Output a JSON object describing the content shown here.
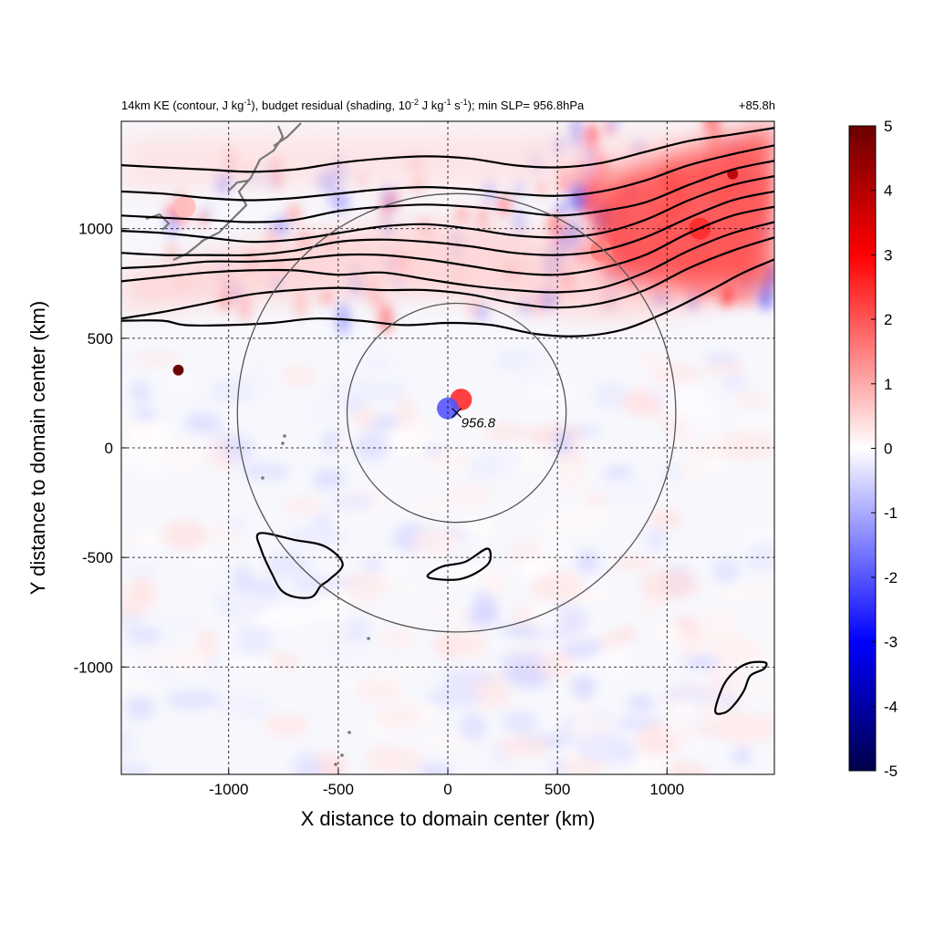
{
  "chart_data": {
    "type": "heatmap",
    "title_parts": {
      "p1": "14km KE (contour, J kg",
      "e1": "-1",
      "p2": "), budget residual (shading, 10",
      "e2": "-2",
      "p3": " J kg",
      "e3": "-1",
      "p4": " s",
      "e4": "-1",
      "p5": "); min SLP= 956.8hPa"
    },
    "title_right": "+85.8h",
    "xlabel": "X distance to domain center (km)",
    "ylabel": "Y distance to domain center (km)",
    "xlim": [
      -1490,
      1490
    ],
    "ylim": [
      -1490,
      1490
    ],
    "xticks": [
      -1000,
      -500,
      0,
      500,
      1000
    ],
    "yticks": [
      -1000,
      -500,
      0,
      500,
      1000
    ],
    "grid": true,
    "colorbar": {
      "min": -5,
      "max": 5,
      "ticks": [
        5,
        4,
        3,
        2,
        1,
        0,
        -1,
        -2,
        -3,
        -4,
        -5
      ],
      "colormap": "blue-white-red",
      "colors": [
        "#00004a",
        "#0000ff",
        "#ffffff",
        "#ff0000",
        "#6a0000"
      ]
    },
    "storm_center": {
      "x": 40,
      "y": 160,
      "label": "956.8"
    },
    "range_circles_km": [
      500,
      1000
    ],
    "shading_features": [
      {
        "x": -1230,
        "y": 355,
        "value": 5
      },
      {
        "x": 60,
        "y": 220,
        "value": 2.5
      },
      {
        "x": 0,
        "y": 180,
        "value": -2
      },
      {
        "x": 1300,
        "y": 1250,
        "value": 4
      },
      {
        "x": 1150,
        "y": 1000,
        "value": 2.5
      },
      {
        "x": 700,
        "y": 900,
        "value": 1.5
      },
      {
        "x": -1200,
        "y": 1100,
        "value": 0.8
      }
    ],
    "ke_contours": [
      [
        [
          -1490,
          1290
        ],
        [
          -1300,
          1280
        ],
        [
          -1100,
          1270
        ],
        [
          -900,
          1260
        ],
        [
          -700,
          1270
        ],
        [
          -500,
          1300
        ],
        [
          -300,
          1320
        ],
        [
          -100,
          1330
        ],
        [
          100,
          1320
        ],
        [
          300,
          1290
        ],
        [
          500,
          1280
        ],
        [
          700,
          1300
        ],
        [
          900,
          1350
        ],
        [
          1100,
          1400
        ],
        [
          1300,
          1430
        ],
        [
          1490,
          1460
        ]
      ],
      [
        [
          -1490,
          1170
        ],
        [
          -1300,
          1160
        ],
        [
          -1100,
          1140
        ],
        [
          -900,
          1130
        ],
        [
          -700,
          1140
        ],
        [
          -500,
          1160
        ],
        [
          -300,
          1180
        ],
        [
          -100,
          1190
        ],
        [
          100,
          1180
        ],
        [
          300,
          1160
        ],
        [
          500,
          1150
        ],
        [
          700,
          1170
        ],
        [
          900,
          1220
        ],
        [
          1100,
          1290
        ],
        [
          1300,
          1340
        ],
        [
          1490,
          1380
        ]
      ],
      [
        [
          -1490,
          1060
        ],
        [
          -1300,
          1050
        ],
        [
          -1100,
          1040
        ],
        [
          -900,
          1030
        ],
        [
          -700,
          1040
        ],
        [
          -500,
          1080
        ],
        [
          -300,
          1100
        ],
        [
          -100,
          1110
        ],
        [
          100,
          1100
        ],
        [
          300,
          1080
        ],
        [
          500,
          1060
        ],
        [
          700,
          1080
        ],
        [
          900,
          1120
        ],
        [
          1100,
          1200
        ],
        [
          1300,
          1270
        ],
        [
          1490,
          1310
        ]
      ],
      [
        [
          -1490,
          990
        ],
        [
          -1300,
          980
        ],
        [
          -1100,
          960
        ],
        [
          -900,
          940
        ],
        [
          -700,
          950
        ],
        [
          -500,
          980
        ],
        [
          -300,
          1010
        ],
        [
          -100,
          1020
        ],
        [
          100,
          1000
        ],
        [
          300,
          970
        ],
        [
          500,
          960
        ],
        [
          700,
          980
        ],
        [
          900,
          1040
        ],
        [
          1100,
          1130
        ],
        [
          1300,
          1200
        ],
        [
          1490,
          1240
        ]
      ],
      [
        [
          -1490,
          890
        ],
        [
          -1300,
          880
        ],
        [
          -1100,
          880
        ],
        [
          -900,
          880
        ],
        [
          -700,
          900
        ],
        [
          -500,
          940
        ],
        [
          -300,
          950
        ],
        [
          -100,
          940
        ],
        [
          100,
          920
        ],
        [
          300,
          890
        ],
        [
          500,
          880
        ],
        [
          700,
          900
        ],
        [
          900,
          960
        ],
        [
          1100,
          1050
        ],
        [
          1300,
          1130
        ],
        [
          1490,
          1170
        ]
      ],
      [
        [
          -1490,
          820
        ],
        [
          -1300,
          830
        ],
        [
          -1100,
          850
        ],
        [
          -900,
          850
        ],
        [
          -700,
          860
        ],
        [
          -500,
          880
        ],
        [
          -300,
          880
        ],
        [
          -100,
          860
        ],
        [
          100,
          830
        ],
        [
          300,
          800
        ],
        [
          500,
          790
        ],
        [
          700,
          820
        ],
        [
          900,
          880
        ],
        [
          1100,
          980
        ],
        [
          1300,
          1060
        ],
        [
          1490,
          1100
        ]
      ],
      [
        [
          -1490,
          760
        ],
        [
          -1300,
          780
        ],
        [
          -1100,
          800
        ],
        [
          -900,
          810
        ],
        [
          -700,
          810
        ],
        [
          -500,
          790
        ],
        [
          -300,
          800
        ],
        [
          -100,
          770
        ],
        [
          100,
          740
        ],
        [
          300,
          720
        ],
        [
          500,
          710
        ],
        [
          700,
          730
        ],
        [
          900,
          800
        ],
        [
          1100,
          900
        ],
        [
          1300,
          980
        ],
        [
          1490,
          1030
        ]
      ],
      [
        [
          -1490,
          590
        ],
        [
          -1300,
          620
        ],
        [
          -1100,
          660
        ],
        [
          -900,
          700
        ],
        [
          -700,
          720
        ],
        [
          -500,
          730
        ],
        [
          -300,
          720
        ],
        [
          -100,
          720
        ],
        [
          100,
          700
        ],
        [
          300,
          660
        ],
        [
          500,
          640
        ],
        [
          700,
          660
        ],
        [
          900,
          720
        ],
        [
          1100,
          820
        ],
        [
          1300,
          900
        ],
        [
          1490,
          960
        ]
      ],
      [
        [
          -1490,
          580
        ],
        [
          -1300,
          580
        ],
        [
          -1200,
          560
        ],
        [
          -1000,
          560
        ],
        [
          -800,
          570
        ],
        [
          -600,
          590
        ],
        [
          -400,
          580
        ],
        [
          -200,
          560
        ],
        [
          0,
          570
        ],
        [
          200,
          560
        ],
        [
          400,
          520
        ],
        [
          600,
          510
        ],
        [
          800,
          540
        ],
        [
          1000,
          620
        ],
        [
          1200,
          720
        ],
        [
          1350,
          800
        ],
        [
          1490,
          860
        ]
      ]
    ],
    "closed_contours": [
      [
        [
          -860,
          -390
        ],
        [
          -700,
          -420
        ],
        [
          -560,
          -450
        ],
        [
          -480,
          -530
        ],
        [
          -540,
          -600
        ],
        [
          -580,
          -630
        ],
        [
          -620,
          -680
        ],
        [
          -700,
          -680
        ],
        [
          -760,
          -650
        ],
        [
          -800,
          -580
        ],
        [
          -850,
          -470
        ]
      ],
      [
        [
          -80,
          -570
        ],
        [
          -20,
          -540
        ],
        [
          80,
          -520
        ],
        [
          180,
          -460
        ],
        [
          190,
          -520
        ],
        [
          130,
          -570
        ],
        [
          50,
          -600
        ],
        [
          -40,
          -600
        ],
        [
          -90,
          -590
        ]
      ],
      [
        [
          1220,
          -1200
        ],
        [
          1260,
          -1080
        ],
        [
          1320,
          -1010
        ],
        [
          1380,
          -980
        ],
        [
          1450,
          -980
        ],
        [
          1440,
          -1010
        ],
        [
          1380,
          -1040
        ],
        [
          1350,
          -1110
        ],
        [
          1300,
          -1180
        ],
        [
          1260,
          -1210
        ]
      ]
    ]
  }
}
